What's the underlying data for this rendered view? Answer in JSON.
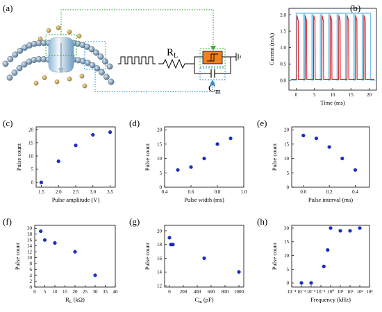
{
  "panel_labels": [
    "(a)",
    "(b)",
    "(c)",
    "(d)",
    "(e)",
    "(f)",
    "(g)",
    "(h)"
  ],
  "schematic": {
    "resistor_label": "R",
    "resistor_sub": "L",
    "capacitor_label": "C",
    "capacitor_sub": "m",
    "colors": {
      "green_arrow": "#3aa83a",
      "blue_arrow": "#2a8fd6",
      "device": "#f08020"
    }
  },
  "chart_data": [
    {
      "id": "b",
      "type": "line",
      "xlabel": "Time (ms)",
      "ylabel": "Current (mA)",
      "xlim": [
        -2,
        22
      ],
      "ylim": [
        -0.3,
        2.2
      ],
      "xticks": [
        0,
        5,
        10,
        15,
        20
      ],
      "yticks": [
        0.0,
        0.5,
        1.0,
        1.5,
        2.0
      ],
      "ytick_labels": [
        "0.0",
        "0.5",
        "1.0",
        "1.5",
        "2.0"
      ],
      "series": [
        {
          "color": "#e02020",
          "pulse_starts": [
            0.15,
            2.45,
            4.75,
            7.05,
            9.35,
            11.65,
            13.95,
            16.25,
            18.55
          ],
          "pulse_width": 0.4,
          "peak": 1.98,
          "baseline": 0.03
        },
        {
          "color": "#7fc4ec",
          "pulse_starts": [
            0.0,
            2.3,
            4.6,
            6.9,
            9.2,
            11.5,
            13.8,
            16.1,
            18.4
          ],
          "pulse_width": 2.0,
          "high": 2.05,
          "low": 0.0
        }
      ]
    },
    {
      "id": "c",
      "type": "scatter",
      "xlabel": "Pulse amplitude (V)",
      "ylabel": "Pulse count",
      "xlim": [
        1.35,
        3.65
      ],
      "ylim": [
        -1.8,
        21
      ],
      "xticks": [
        1.5,
        2.0,
        2.5,
        3.0,
        3.5
      ],
      "xtick_labels": [
        "1.5",
        "2.0",
        "2.5",
        "3.0",
        "3.5"
      ],
      "yticks": [
        0,
        5,
        10,
        15,
        20
      ],
      "ytick_labels": [
        "0",
        "5",
        "10",
        "15",
        "20"
      ],
      "x": [
        1.5,
        2.0,
        2.5,
        3.0,
        3.5
      ],
      "y": [
        0,
        8,
        14,
        18,
        19
      ]
    },
    {
      "id": "d",
      "type": "scatter",
      "xlabel": "Pulse width (ms)",
      "ylabel": "Pulse count",
      "xlim": [
        0.4,
        1.0
      ],
      "ylim": [
        0,
        21
      ],
      "xticks": [
        0.4,
        0.6,
        0.8,
        1.0
      ],
      "xtick_labels": [
        "0.4",
        "0.6",
        "0.8",
        "1.0"
      ],
      "yticks": [
        0,
        5,
        10,
        15,
        20
      ],
      "ytick_labels": [
        "0",
        "5",
        "10",
        "15",
        "20"
      ],
      "x": [
        0.5,
        0.6,
        0.7,
        0.8,
        0.9
      ],
      "y": [
        6,
        7,
        10,
        15,
        17
      ]
    },
    {
      "id": "e",
      "type": "scatter",
      "xlabel": "Pulse interval (ms)",
      "ylabel": "Pulse count",
      "xlim": [
        -0.09,
        0.51
      ],
      "ylim": [
        0,
        21
      ],
      "xticks": [
        0.0,
        0.2,
        0.4
      ],
      "xtick_labels": [
        "0.0",
        "0.2",
        "0.4"
      ],
      "yticks": [
        0,
        5,
        10,
        15,
        20
      ],
      "ytick_labels": [
        "0",
        "5",
        "10",
        "15",
        "20"
      ],
      "x": [
        0.0,
        0.1,
        0.2,
        0.3,
        0.4
      ],
      "y": [
        18,
        17,
        14,
        10,
        6
      ]
    },
    {
      "id": "f",
      "type": "scatter",
      "xlabel": "R",
      "xlabel_sub": "L",
      "xlabel_unit": " (kΩ)",
      "ylabel": "Pulse count",
      "xlim": [
        0,
        40
      ],
      "ylim": [
        0,
        21
      ],
      "xticks": [
        0,
        5,
        10,
        15,
        20,
        25,
        30,
        35,
        40
      ],
      "xtick_labels": [
        "0",
        "5",
        "10",
        "15",
        "20",
        "25",
        "30",
        "35",
        "40"
      ],
      "yticks": [
        0,
        2,
        4,
        6,
        8,
        10,
        12,
        14,
        16,
        18,
        20
      ],
      "ytick_labels": [
        "0",
        "2",
        "4",
        "6",
        "8",
        "10",
        "12",
        "14",
        "16",
        "18",
        "20"
      ],
      "x": [
        3,
        5,
        10,
        20,
        30
      ],
      "y": [
        19,
        16,
        15,
        12,
        4
      ]
    },
    {
      "id": "g",
      "type": "scatter",
      "xlabel": "C",
      "xlabel_sub": "m",
      "xlabel_unit": " (pF)",
      "ylabel": "Pulse count",
      "xlim": [
        -70,
        1070
      ],
      "ylim": [
        11.8,
        20.8
      ],
      "xticks": [
        0,
        200,
        400,
        600,
        800,
        1000
      ],
      "xtick_labels": [
        "0",
        "200",
        "400",
        "600",
        "800",
        "1000"
      ],
      "yticks": [
        12,
        14,
        16,
        18,
        20
      ],
      "ytick_labels": [
        "12",
        "14",
        "16",
        "18",
        "20"
      ],
      "x": [
        0,
        20,
        50,
        500,
        1000
      ],
      "y": [
        19,
        18,
        18,
        16,
        14
      ]
    },
    {
      "id": "h",
      "type": "scatter",
      "xscale": "log",
      "xlabel": "Frequency (kHz)",
      "ylabel": "Pulse count",
      "xlim": [
        0.0001,
        10000
      ],
      "ylim": [
        -1.5,
        21
      ],
      "xticks": [
        0.0001,
        0.001,
        0.01,
        0.1,
        1,
        10,
        100,
        1000,
        10000
      ],
      "xtick_labels": [
        "10⁻⁴",
        "10⁻³",
        "10⁻²",
        "10⁻¹",
        "10⁰",
        "10¹",
        "10²",
        "10³",
        "10⁴"
      ],
      "yticks": [
        0,
        5,
        10,
        15,
        20
      ],
      "ytick_labels": [
        "0",
        "5",
        "10",
        "15",
        "20"
      ],
      "x": [
        0.001,
        0.01,
        0.2,
        0.5,
        1,
        10,
        100,
        1000
      ],
      "y": [
        0,
        0,
        6,
        12,
        20,
        19,
        19,
        20
      ]
    }
  ]
}
